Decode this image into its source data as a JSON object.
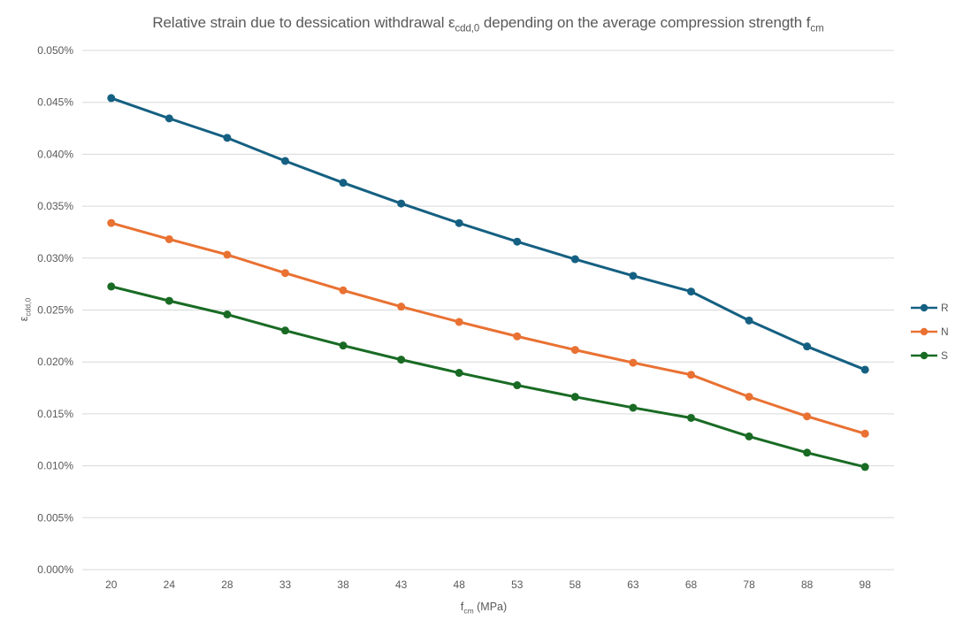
{
  "chart_data": {
    "type": "line",
    "title": {
      "part1": "Relative strain due to dessication withdrawal ε",
      "sub1": "cdd,0",
      "part2": " depending on the average compression strength f",
      "sub2": "cm"
    },
    "xlabel": {
      "part1": "f",
      "sub1": "cm",
      "part2": " (MPa)"
    },
    "ylabel": {
      "part1": "ε",
      "sub1": "cdd,0"
    },
    "x_values": [
      20,
      24,
      28,
      33,
      38,
      43,
      48,
      53,
      58,
      63,
      68,
      78,
      88,
      98
    ],
    "x_tick_labels": [
      "20",
      "24",
      "28",
      "33",
      "38",
      "43",
      "48",
      "53",
      "58",
      "63",
      "68",
      "78",
      "88",
      "98"
    ],
    "y_tick_labels": [
      "0.000%",
      "0.005%",
      "0.010%",
      "0.015%",
      "0.020%",
      "0.025%",
      "0.030%",
      "0.035%",
      "0.040%",
      "0.045%",
      "0.050%"
    ],
    "y_axis": {
      "min": 0,
      "max": 0.05,
      "step": 0.005,
      "unit": "%"
    },
    "grid": true,
    "legend_position": "right",
    "series": [
      {
        "name": "R",
        "color": "#156082",
        "values_percent": [
          0.045406,
          0.043452,
          0.041581,
          0.039356,
          0.03725,
          0.035256,
          0.03337,
          0.031584,
          0.029894,
          0.028295,
          0.02678,
          0.023991,
          0.021492,
          0.019255
        ]
      },
      {
        "name": "N",
        "color": "#E97132",
        "values_percent": [
          0.03338,
          0.031816,
          0.030324,
          0.028558,
          0.026895,
          0.025329,
          0.023854,
          0.022465,
          0.021157,
          0.019924,
          0.018764,
          0.016643,
          0.01476,
          0.013091
        ]
      },
      {
        "name": "S",
        "color": "#196B24",
        "values_percent": [
          0.027266,
          0.025885,
          0.024573,
          0.023027,
          0.021578,
          0.02022,
          0.018948,
          0.017756,
          0.016638,
          0.015591,
          0.01461,
          0.012828,
          0.011263,
          0.009889
        ]
      }
    ],
    "colors": {
      "text": "#595959",
      "gridline": "#D9D9D9",
      "background": "#FFFFFF"
    }
  }
}
